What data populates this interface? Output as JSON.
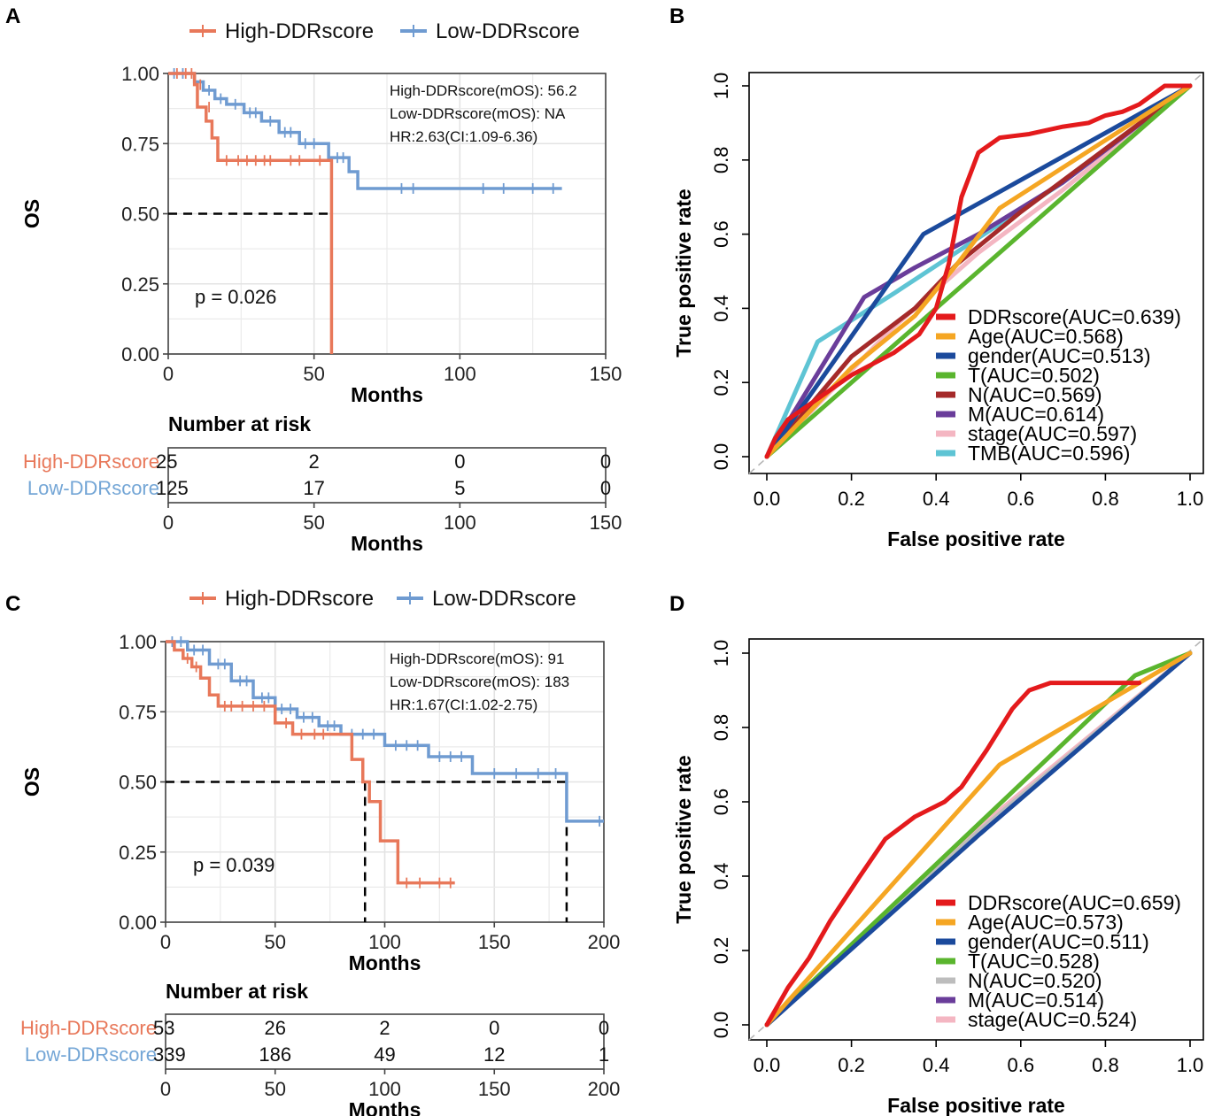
{
  "colors": {
    "high": "#e8785a",
    "low": "#6f9bd1",
    "high_label": "#e8785a",
    "low_label": "#74a6d6"
  },
  "chart_data": [
    {
      "panel": "A",
      "type": "line",
      "subtype": "kaplan-meier",
      "legend": [
        "High-DDRscore",
        "Low-DDRscore"
      ],
      "xlabel": "Months",
      "ylabel": "OS",
      "xlim": [
        0,
        150
      ],
      "ylim": [
        0,
        1
      ],
      "xticks": [
        0,
        50,
        100,
        150
      ],
      "yticks": [
        "0.00",
        "0.25",
        "0.50",
        "0.75",
        "1.00"
      ],
      "annotations": [
        "High-DDRscore(mOS):  56.2",
        "Low-DDRscore(mOS):  NA",
        "HR:2.63(CI:1.09-6.36)"
      ],
      "pvalue": "p = 0.026",
      "median_lines": [
        56
      ],
      "series": [
        {
          "name": "High-DDRscore",
          "x": [
            0,
            9,
            9,
            10,
            10,
            13,
            13,
            15,
            15,
            17,
            17,
            56,
            56
          ],
          "y": [
            1,
            1,
            0.96,
            0.96,
            0.88,
            0.88,
            0.83,
            0.83,
            0.77,
            0.77,
            0.69,
            0.69,
            0
          ],
          "censor_x": [
            3,
            6,
            8,
            11,
            14,
            20,
            24,
            27,
            30,
            33,
            35,
            42,
            45,
            52
          ],
          "censor_y": [
            1,
            1,
            1,
            0.96,
            0.88,
            0.69,
            0.69,
            0.69,
            0.69,
            0.69,
            0.69,
            0.69,
            0.69,
            0.69
          ]
        },
        {
          "name": "Low-DDRscore",
          "x": [
            0,
            9,
            9,
            12,
            12,
            16,
            16,
            20,
            20,
            26,
            26,
            32,
            32,
            38,
            38,
            45,
            45,
            55,
            55,
            62,
            62,
            65,
            65,
            135
          ],
          "y": [
            1,
            1,
            0.97,
            0.97,
            0.94,
            0.94,
            0.91,
            0.91,
            0.89,
            0.89,
            0.86,
            0.86,
            0.83,
            0.83,
            0.79,
            0.79,
            0.75,
            0.75,
            0.7,
            0.7,
            0.65,
            0.65,
            0.59,
            0.59
          ],
          "censor_x": [
            2,
            5,
            14,
            18,
            23,
            28,
            30,
            35,
            40,
            42,
            47,
            50,
            58,
            60,
            80,
            84,
            108,
            115,
            125,
            132
          ],
          "censor_y": [
            1,
            1,
            0.94,
            0.91,
            0.89,
            0.86,
            0.86,
            0.83,
            0.79,
            0.79,
            0.75,
            0.75,
            0.7,
            0.7,
            0.59,
            0.59,
            0.59,
            0.59,
            0.59,
            0.59
          ]
        }
      ],
      "risk_table": {
        "title": "Number at risk",
        "xlabel": "Months",
        "times": [
          0,
          50,
          100,
          150
        ],
        "rows": [
          {
            "name": "High-DDRscore",
            "counts": [
              "25",
              "2",
              "0",
              "0"
            ]
          },
          {
            "name": "Low-DDRscore",
            "counts": [
              "125",
              "17",
              "5",
              "0"
            ]
          }
        ]
      }
    },
    {
      "panel": "B",
      "type": "line",
      "subtype": "roc",
      "xlabel": "False positive rate",
      "ylabel": "True positive rate",
      "xlim": [
        0,
        1
      ],
      "ylim": [
        0,
        1
      ],
      "ticks": [
        "0.0",
        "0.2",
        "0.4",
        "0.6",
        "0.8",
        "1.0"
      ],
      "series": [
        {
          "name": "DDRscore(AUC=0.639)",
          "color": "#e41a1c",
          "x": [
            0,
            0.02,
            0.05,
            0.1,
            0.2,
            0.3,
            0.36,
            0.4,
            0.43,
            0.46,
            0.5,
            0.55,
            0.62,
            0.7,
            0.76,
            0.8,
            0.84,
            0.88,
            0.94,
            1
          ],
          "y": [
            0,
            0.05,
            0.1,
            0.14,
            0.22,
            0.28,
            0.33,
            0.4,
            0.52,
            0.7,
            0.82,
            0.86,
            0.87,
            0.89,
            0.9,
            0.92,
            0.93,
            0.95,
            1,
            1
          ]
        },
        {
          "name": "Age(AUC=0.568)",
          "color": "#f5a623",
          "x": [
            0,
            0.2,
            0.35,
            0.45,
            0.55,
            1
          ],
          "y": [
            0,
            0.24,
            0.38,
            0.52,
            0.67,
            1
          ]
        },
        {
          "name": "gender(AUC=0.513)",
          "color": "#1b4a9c",
          "x": [
            0,
            0.37,
            1
          ],
          "y": [
            0,
            0.6,
            1
          ]
        },
        {
          "name": "T(AUC=0.502)",
          "color": "#5ab52e",
          "x": [
            0,
            1
          ],
          "y": [
            0,
            1
          ]
        },
        {
          "name": "N(AUC=0.569)",
          "color": "#a52a2a",
          "x": [
            0,
            0.2,
            0.35,
            0.45,
            0.6,
            1
          ],
          "y": [
            0,
            0.27,
            0.4,
            0.52,
            0.66,
            1
          ]
        },
        {
          "name": "M(AUC=0.614)",
          "color": "#6a3d9a",
          "x": [
            0,
            0.23,
            0.35,
            0.5,
            0.7,
            1
          ],
          "y": [
            0,
            0.43,
            0.51,
            0.6,
            0.74,
            1
          ]
        },
        {
          "name": "stage(AUC=0.597)",
          "color": "#f4b6c2",
          "x": [
            0,
            0.3,
            0.5,
            0.7,
            1
          ],
          "y": [
            0,
            0.35,
            0.55,
            0.72,
            1
          ]
        },
        {
          "name": "TMB(AUC=0.596)",
          "color": "#5ec4d4",
          "x": [
            0,
            0.12,
            0.3,
            0.5,
            0.7,
            1
          ],
          "y": [
            0,
            0.31,
            0.44,
            0.59,
            0.74,
            1
          ]
        }
      ]
    },
    {
      "panel": "C",
      "type": "line",
      "subtype": "kaplan-meier",
      "legend": [
        "High-DDRscore",
        "Low-DDRscore"
      ],
      "xlabel": "Months",
      "ylabel": "OS",
      "xlim": [
        0,
        200
      ],
      "ylim": [
        0,
        1
      ],
      "xticks": [
        0,
        50,
        100,
        150,
        200
      ],
      "yticks": [
        "0.00",
        "0.25",
        "0.50",
        "0.75",
        "1.00"
      ],
      "annotations": [
        "High-DDRscore(mOS):  91",
        "Low-DDRscore(mOS):  183",
        "HR:1.67(CI:1.02-2.75)"
      ],
      "pvalue": "p = 0.039",
      "median_lines": [
        91,
        183
      ],
      "series": [
        {
          "name": "High-DDRscore",
          "x": [
            0,
            4,
            4,
            8,
            8,
            12,
            12,
            16,
            16,
            20,
            20,
            24,
            24,
            50,
            50,
            58,
            58,
            85,
            85,
            90,
            90,
            93,
            93,
            98,
            98,
            106,
            106,
            132
          ],
          "y": [
            1,
            1,
            0.97,
            0.97,
            0.94,
            0.94,
            0.91,
            0.91,
            0.87,
            0.87,
            0.81,
            0.81,
            0.77,
            0.77,
            0.71,
            0.71,
            0.67,
            0.67,
            0.58,
            0.58,
            0.5,
            0.5,
            0.43,
            0.43,
            0.29,
            0.29,
            0.14,
            0.14
          ],
          "censor_x": [
            10,
            14,
            27,
            30,
            35,
            40,
            45,
            55,
            62,
            68,
            72,
            110,
            116,
            125,
            130
          ],
          "censor_y": [
            0.94,
            0.91,
            0.77,
            0.77,
            0.77,
            0.77,
            0.77,
            0.71,
            0.67,
            0.67,
            0.67,
            0.14,
            0.14,
            0.14,
            0.14
          ]
        },
        {
          "name": "Low-DDRscore",
          "x": [
            0,
            10,
            10,
            20,
            20,
            30,
            30,
            40,
            40,
            50,
            50,
            60,
            60,
            70,
            70,
            80,
            80,
            100,
            100,
            120,
            120,
            140,
            140,
            183,
            183,
            200
          ],
          "y": [
            1,
            1,
            0.97,
            0.97,
            0.92,
            0.92,
            0.86,
            0.86,
            0.8,
            0.8,
            0.76,
            0.76,
            0.73,
            0.73,
            0.7,
            0.7,
            0.67,
            0.67,
            0.63,
            0.63,
            0.59,
            0.59,
            0.53,
            0.53,
            0.36,
            0.36
          ],
          "censor_x": [
            3,
            7,
            13,
            17,
            24,
            27,
            34,
            37,
            44,
            47,
            53,
            57,
            63,
            67,
            74,
            77,
            85,
            90,
            95,
            105,
            110,
            115,
            125,
            130,
            135,
            150,
            160,
            170,
            178,
            198
          ],
          "censor_y": [
            1,
            1,
            0.97,
            0.97,
            0.92,
            0.92,
            0.86,
            0.86,
            0.8,
            0.8,
            0.76,
            0.76,
            0.73,
            0.73,
            0.7,
            0.7,
            0.67,
            0.67,
            0.67,
            0.63,
            0.63,
            0.63,
            0.59,
            0.59,
            0.59,
            0.53,
            0.53,
            0.53,
            0.53,
            0.36
          ]
        }
      ],
      "risk_table": {
        "title": "Number at risk",
        "xlabel": "Months",
        "times": [
          0,
          50,
          100,
          150,
          200
        ],
        "rows": [
          {
            "name": "High-DDRscore",
            "counts": [
              "53",
              "26",
              "2",
              "0",
              "0"
            ]
          },
          {
            "name": "Low-DDRscore",
            "counts": [
              "339",
              "186",
              "49",
              "12",
              "1"
            ]
          }
        ]
      }
    },
    {
      "panel": "D",
      "type": "line",
      "subtype": "roc",
      "xlabel": "False positive rate",
      "ylabel": "True positive rate",
      "xlim": [
        0,
        1
      ],
      "ylim": [
        0,
        1
      ],
      "ticks": [
        "0.0",
        "0.2",
        "0.4",
        "0.6",
        "0.8",
        "1.0"
      ],
      "series": [
        {
          "name": "DDRscore(AUC=0.659)",
          "color": "#e41a1c",
          "x": [
            0,
            0.02,
            0.05,
            0.1,
            0.15,
            0.22,
            0.28,
            0.35,
            0.42,
            0.46,
            0.52,
            0.58,
            0.62,
            0.67,
            0.8,
            0.88
          ],
          "y": [
            0,
            0.04,
            0.1,
            0.18,
            0.28,
            0.4,
            0.5,
            0.56,
            0.6,
            0.64,
            0.74,
            0.85,
            0.9,
            0.92,
            0.92,
            0.92
          ]
        },
        {
          "name": "Age(AUC=0.573)",
          "color": "#f5a623",
          "x": [
            0,
            0.55,
            0.88,
            1
          ],
          "y": [
            0,
            0.7,
            0.92,
            1
          ]
        },
        {
          "name": "gender(AUC=0.511)",
          "color": "#1b4a9c",
          "x": [
            0,
            0.5,
            1
          ],
          "y": [
            0,
            0.51,
            1
          ]
        },
        {
          "name": "T(AUC=0.528)",
          "color": "#5ab52e",
          "x": [
            0,
            0.5,
            0.87,
            1
          ],
          "y": [
            0,
            0.54,
            0.94,
            1
          ]
        },
        {
          "name": "N(AUC=0.520)",
          "color": "#bdbdbd",
          "x": [
            0,
            0.5,
            1
          ],
          "y": [
            0,
            0.52,
            1
          ]
        },
        {
          "name": "M(AUC=0.514)",
          "color": "#6a3d9a",
          "x": [
            0,
            0.5,
            1
          ],
          "y": [
            0,
            0.515,
            1
          ]
        },
        {
          "name": "stage(AUC=0.524)",
          "color": "#f4b6c2",
          "x": [
            0,
            0.5,
            1
          ],
          "y": [
            0,
            0.53,
            1
          ]
        }
      ]
    }
  ]
}
